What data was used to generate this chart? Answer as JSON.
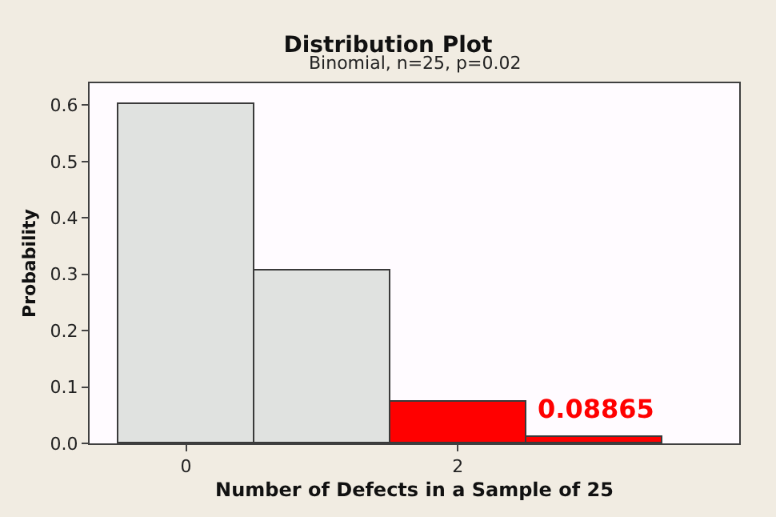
{
  "chart_data": {
    "type": "bar",
    "title": "Distribution Plot",
    "subtitle": "Binomial, n=25, p=0.02",
    "xlabel": "Number of Defects in a Sample of 25",
    "ylabel": "Probability",
    "x": [
      0,
      1,
      2,
      3
    ],
    "values": [
      0.603,
      0.308,
      0.075,
      0.012
    ],
    "colors": [
      "#e0e2e0",
      "#e0e2e0",
      "#ff0000",
      "#ff0000"
    ],
    "xlim": [
      -0.71,
      4.07
    ],
    "xticks": [
      0,
      2
    ],
    "ylim": [
      0,
      0.639
    ],
    "yticks": [
      {
        "value": 0,
        "label": "0.0"
      },
      0.1,
      0.2,
      0.3,
      0.4,
      0.5,
      0.6
    ],
    "annotations": [
      "0.08865"
    ]
  }
}
